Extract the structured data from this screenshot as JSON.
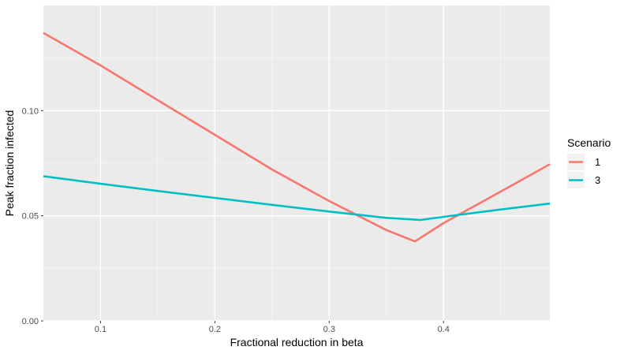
{
  "chart_data": {
    "type": "line",
    "xlabel": "Fractional reduction in beta",
    "ylabel": "Peak fraction infected",
    "xlim": [
      0.05,
      0.493
    ],
    "ylim": [
      0.0,
      0.15
    ],
    "x_ticks": [
      0.1,
      0.2,
      0.3,
      0.4
    ],
    "x_tick_labels": [
      "0.1",
      "0.2",
      "0.3",
      "0.4"
    ],
    "y_ticks": [
      0.0,
      0.05,
      0.1
    ],
    "y_tick_labels": [
      "0.00",
      "0.05",
      "0.10"
    ],
    "grid": true,
    "legend": {
      "title": "Scenario",
      "position": "right"
    },
    "series": [
      {
        "name": "1",
        "color": "#F8766D",
        "x": [
          0.05,
          0.1,
          0.15,
          0.2,
          0.25,
          0.3,
          0.35,
          0.375,
          0.4,
          0.45,
          0.493
        ],
        "y": [
          0.137,
          0.1215,
          0.105,
          0.0885,
          0.072,
          0.057,
          0.0432,
          0.0378,
          0.0465,
          0.0615,
          0.0745
        ]
      },
      {
        "name": "3",
        "color": "#00BFC4",
        "x": [
          0.05,
          0.1,
          0.15,
          0.2,
          0.25,
          0.3,
          0.35,
          0.38,
          0.4,
          0.45,
          0.493
        ],
        "y": [
          0.0688,
          0.0652,
          0.0618,
          0.0585,
          0.0552,
          0.052,
          0.049,
          0.048,
          0.0495,
          0.053,
          0.0558
        ]
      }
    ]
  }
}
